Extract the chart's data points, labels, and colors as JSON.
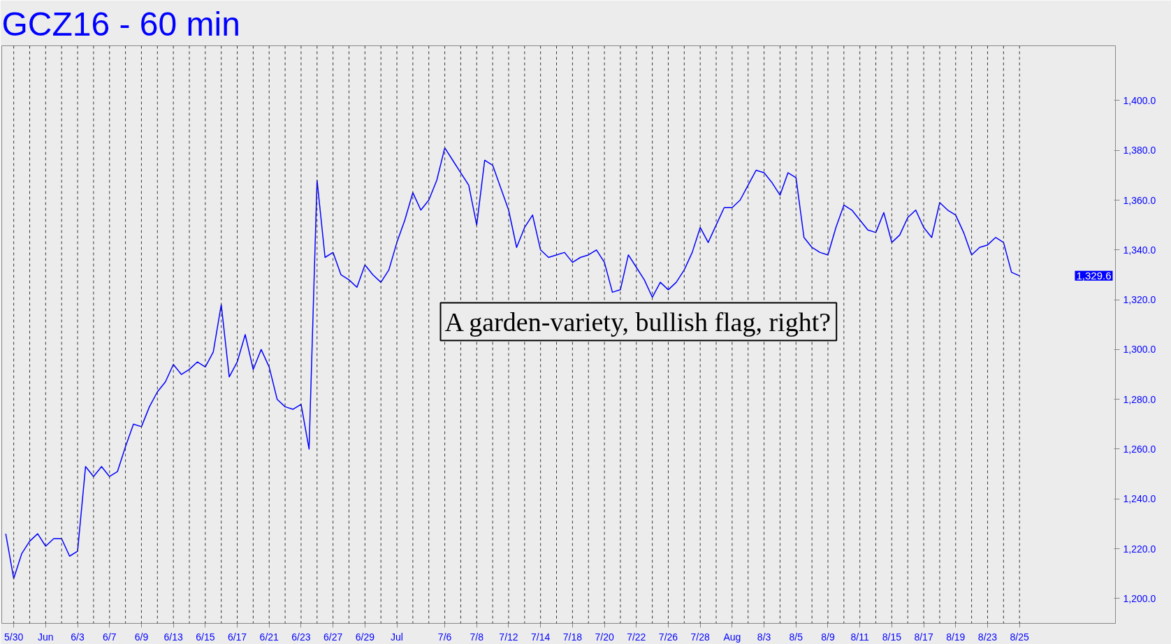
{
  "chart_data": {
    "type": "line",
    "title": "GCZ16 - 60 min",
    "categories": [
      null,
      "5/30",
      null,
      null,
      null,
      "Jun",
      null,
      null,
      null,
      "6/3",
      null,
      null,
      null,
      "6/7",
      null,
      null,
      null,
      "6/9",
      null,
      null,
      null,
      "6/13",
      null,
      null,
      null,
      "6/15",
      null,
      null,
      null,
      "6/17",
      null,
      null,
      null,
      "6/21",
      null,
      null,
      null,
      "6/23",
      null,
      null,
      null,
      "6/27",
      null,
      null,
      null,
      "6/29",
      null,
      null,
      null,
      "Jul",
      null,
      null,
      null,
      null,
      null,
      "7/6",
      null,
      null,
      null,
      "7/8",
      null,
      null,
      null,
      "7/12",
      null,
      null,
      null,
      "7/14",
      null,
      null,
      null,
      "7/18",
      null,
      null,
      null,
      "7/20",
      null,
      null,
      null,
      "7/22",
      null,
      null,
      null,
      "7/26",
      null,
      null,
      null,
      "7/28",
      null,
      null,
      null,
      "Aug",
      null,
      null,
      null,
      "8/3",
      null,
      null,
      null,
      "8/5",
      null,
      null,
      null,
      "8/9",
      null,
      null,
      null,
      "8/11",
      null,
      null,
      null,
      "8/15",
      null,
      null,
      null,
      "8/17",
      null,
      null,
      null,
      "8/19",
      null,
      null,
      null,
      "8/23",
      null,
      null,
      null,
      "8/25"
    ],
    "series": [
      {
        "color": "#0000ff",
        "values": [
          1226,
          1208,
          1218,
          1223,
          1226,
          1221,
          1224,
          1224,
          1217,
          1219,
          1253,
          1249,
          1253,
          1249,
          1251,
          1261,
          1270,
          1269,
          1277,
          1283,
          1287,
          1294,
          1290,
          1292,
          1295,
          1293,
          1299,
          1318,
          1289,
          1295,
          1306,
          1292,
          1300,
          1293,
          1280,
          1277,
          1276,
          1278,
          1260,
          1368,
          1337,
          1339,
          1330,
          1328,
          1325,
          1334,
          1330,
          1327,
          1332,
          1343,
          1352,
          1363,
          1356,
          1360,
          1368,
          1381,
          1376,
          1371,
          1366,
          1350,
          1376,
          1374,
          1365,
          1356,
          1341,
          1349,
          1354,
          1340,
          1337,
          1338,
          1339,
          1335,
          1337,
          1338,
          1340,
          1335,
          1323,
          1324,
          1338,
          1333,
          1328,
          1321,
          1327,
          1324,
          1327,
          1332,
          1339,
          1349,
          1343,
          1350,
          1357,
          1357,
          1360,
          1366,
          1372,
          1371,
          1367,
          1362,
          1371,
          1369,
          1345,
          1341,
          1339,
          1338,
          1349,
          1358,
          1356,
          1352,
          1348,
          1347,
          1355,
          1343,
          1346,
          1353,
          1356,
          1349,
          1345,
          1359,
          1356,
          1354,
          1347,
          1338,
          1341,
          1342,
          1345,
          1343,
          1331,
          1329.6
        ]
      }
    ],
    "ylim": [
      1190,
      1422
    ],
    "yticks": [
      {
        "value": 1200,
        "label": "1,200.0"
      },
      {
        "value": 1220,
        "label": "1,220.0"
      },
      {
        "value": 1240,
        "label": "1,240.0"
      },
      {
        "value": 1260,
        "label": "1,260.0"
      },
      {
        "value": 1280,
        "label": "1,280.0"
      },
      {
        "value": 1300,
        "label": "1,300.0"
      },
      {
        "value": 1320,
        "label": "1,320.0"
      },
      {
        "value": 1340,
        "label": "1,340.0"
      },
      {
        "value": 1360,
        "label": "1,360.0"
      },
      {
        "value": 1380,
        "label": "1,380.0"
      },
      {
        "value": 1400,
        "label": "1,400.0"
      }
    ],
    "grid": "x",
    "annotations": [
      "A garden-variety, bullish flag, right?",
      "1,329.6"
    ]
  }
}
